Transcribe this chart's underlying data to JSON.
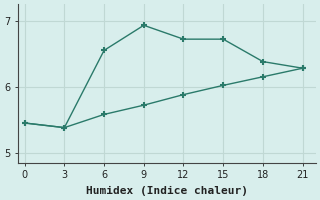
{
  "xlabel": "Humidex (Indice chaleur)",
  "ylabel": "",
  "background_color": "#d8eeec",
  "line_color": "#2a7a6a",
  "grid_color": "#c0d8d4",
  "line1_x": [
    0,
    3,
    6,
    9,
    12,
    15,
    18,
    21
  ],
  "line1_y": [
    5.45,
    5.38,
    6.55,
    6.93,
    6.72,
    6.72,
    6.38,
    6.28
  ],
  "line2_x": [
    0,
    3,
    6,
    9,
    12,
    15,
    18,
    21
  ],
  "line2_y": [
    5.45,
    5.38,
    5.58,
    5.72,
    5.88,
    6.02,
    6.15,
    6.28
  ],
  "xlim": [
    -0.5,
    22
  ],
  "ylim": [
    4.85,
    7.25
  ],
  "xticks": [
    0,
    3,
    6,
    9,
    12,
    15,
    18,
    21
  ],
  "yticks": [
    5,
    6,
    7
  ],
  "marker": "+",
  "markersize": 5,
  "markeredgewidth": 1.5,
  "linewidth": 1.0,
  "xlabel_fontsize": 8,
  "tick_fontsize": 7
}
